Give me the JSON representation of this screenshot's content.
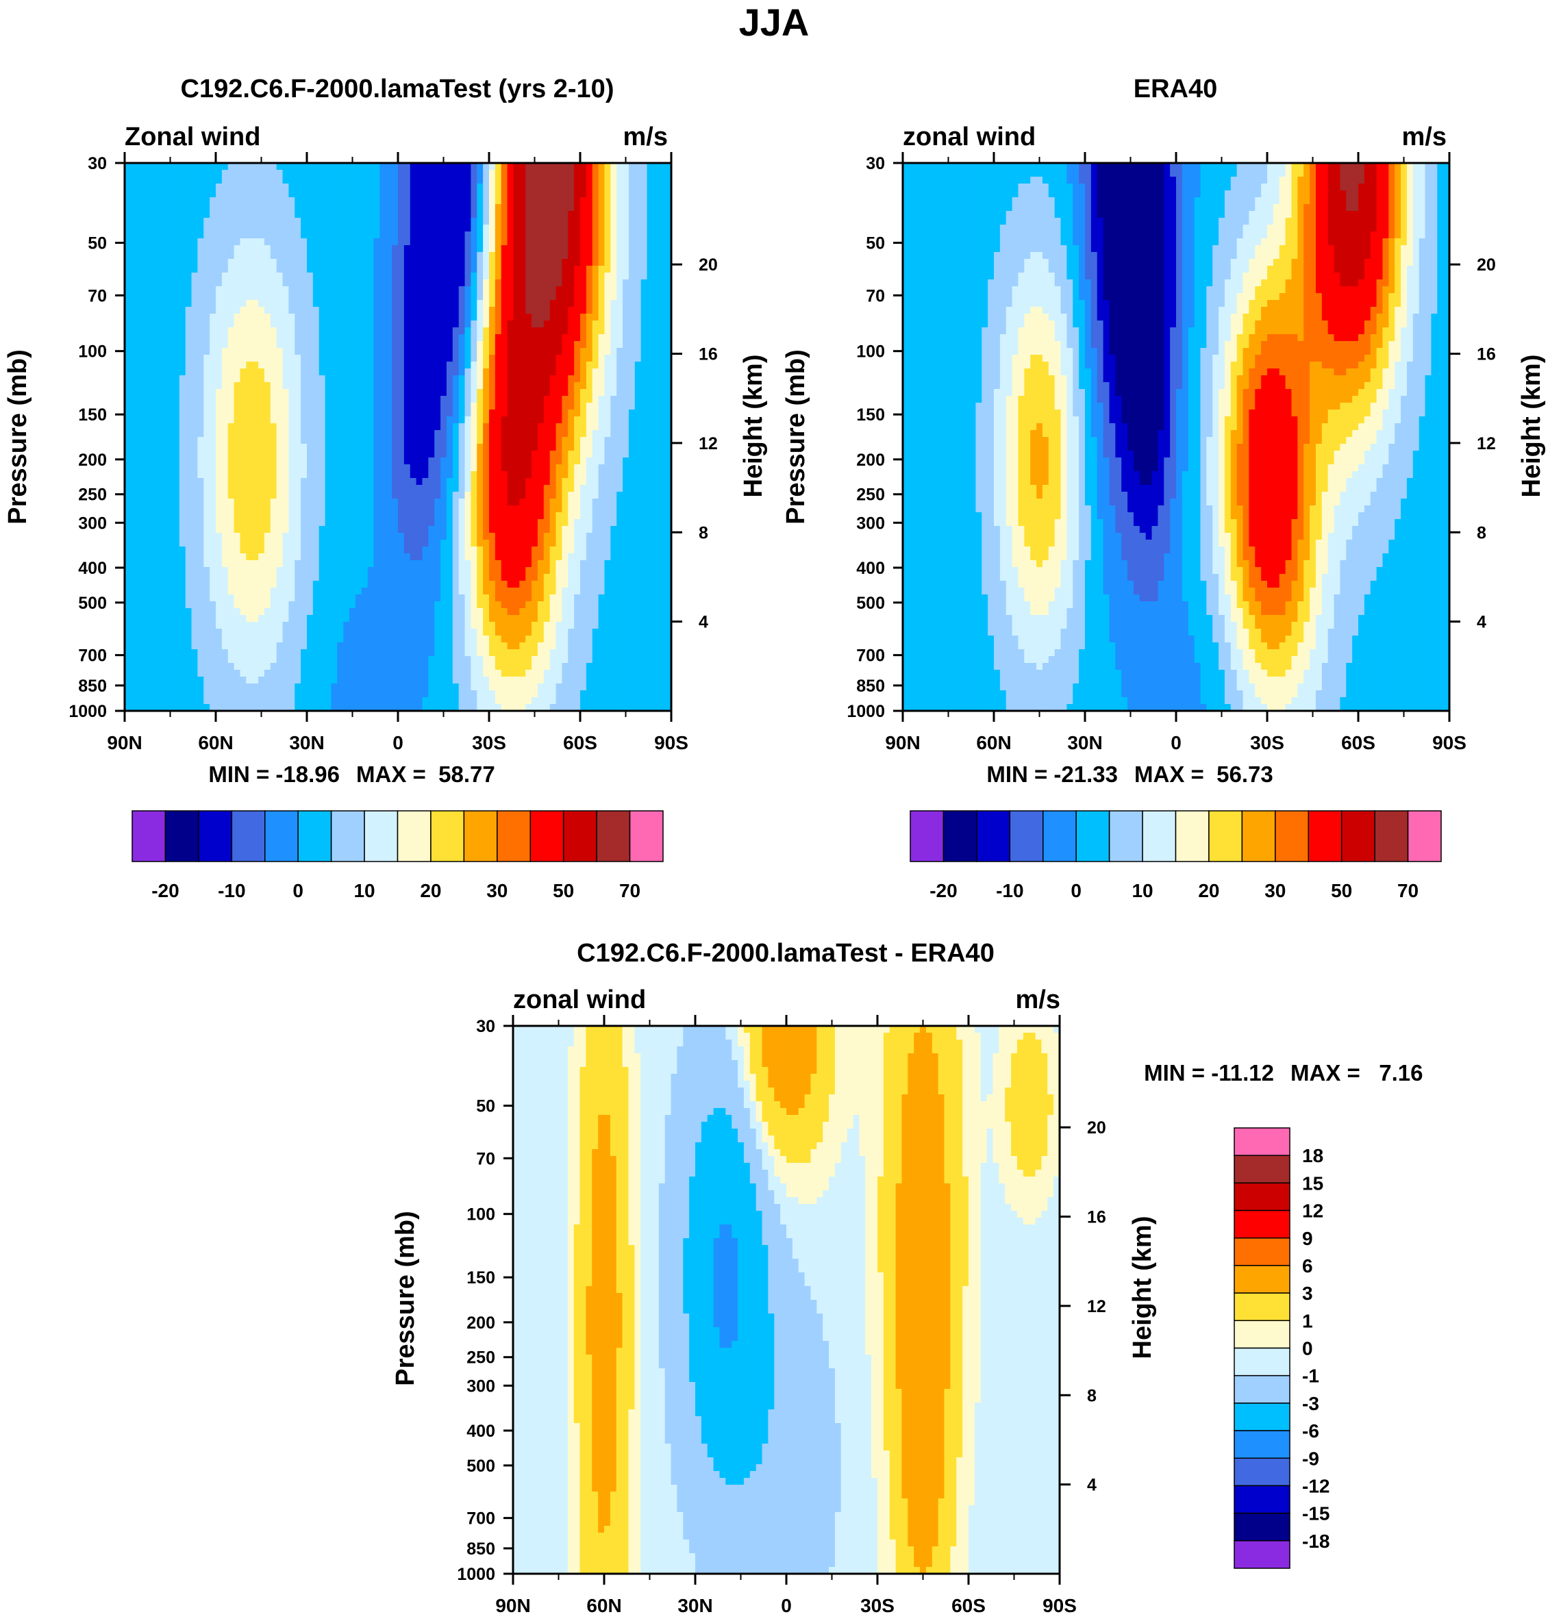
{
  "figure_title": "JJA",
  "colors": {
    "model_levels": [
      -25,
      -20,
      -15,
      -10,
      -5,
      0,
      5,
      10,
      15,
      20,
      25,
      30,
      40,
      50,
      60,
      70
    ],
    "model_palette": [
      "#8a2be2",
      "#00008b",
      "#0000cd",
      "#4169e1",
      "#1e90ff",
      "#00bfff",
      "#a0d0ff",
      "#d2f2ff",
      "#fffacd",
      "#ffe135",
      "#ffa500",
      "#ff7000",
      "#ff0000",
      "#cd0000",
      "#a52a2a",
      "#ff69b4"
    ],
    "diff_levels": [
      -18,
      -15,
      -12,
      -9,
      -6,
      -3,
      -1,
      0,
      1,
      3,
      6,
      9,
      12,
      15,
      18
    ],
    "diff_palette": [
      "#8a2be2",
      "#00008b",
      "#0000cd",
      "#4169e1",
      "#1e90ff",
      "#00bfff",
      "#a0d0ff",
      "#d2f2ff",
      "#fffacd",
      "#ffe135",
      "#ffa500",
      "#ff7000",
      "#ff0000",
      "#cd0000",
      "#a52a2a",
      "#ff69b4"
    ]
  },
  "chart_data": [
    {
      "type": "contour",
      "id": "model",
      "title": "C192.C6.F-2000.lamaTest (yrs 2-10)",
      "left_label": "Zonal wind",
      "right_label": "m/s",
      "ylabel": "Pressure (mb)",
      "y2label": "Height (km)",
      "x_ticks": [
        "90N",
        "60N",
        "30N",
        "0",
        "30S",
        "60S",
        "90S"
      ],
      "x_tick_values": [
        90,
        60,
        30,
        0,
        -30,
        -60,
        -90
      ],
      "y_ticks": [
        30,
        50,
        70,
        100,
        150,
        200,
        250,
        300,
        400,
        500,
        700,
        850,
        1000
      ],
      "height_ticks": [
        20,
        16,
        12,
        8,
        4
      ],
      "min_label": "MIN = -18.96",
      "max_label": "MAX =  58.77",
      "min": -18.96,
      "max": 58.77,
      "colorbar_labels": [
        "-20",
        "-10",
        "0",
        "10",
        "20",
        "30",
        "50",
        "70"
      ],
      "features": [
        {
          "lat": -50,
          "p": 30,
          "amp": 62,
          "slat": 13,
          "sz": 1.2
        },
        {
          "lat": -35,
          "p": 200,
          "amp": 32,
          "slat": 11,
          "sz": 0.9
        },
        {
          "lat": -40,
          "p": 500,
          "amp": 10,
          "slat": 12,
          "sz": 0.8
        },
        {
          "lat": -18,
          "p": 30,
          "amp": -28,
          "slat": 10,
          "sz": 1.4
        },
        {
          "lat": -5,
          "p": 150,
          "amp": -10,
          "slat": 7,
          "sz": 0.8
        },
        {
          "lat": 48,
          "p": 200,
          "amp": 22,
          "slat": 12,
          "sz": 1.0
        },
        {
          "lat": 10,
          "p": 850,
          "amp": -4,
          "slat": 12,
          "sz": 0.5
        }
      ],
      "background": -3
    },
    {
      "type": "contour",
      "id": "era40",
      "title": "ERA40",
      "left_label": "zonal wind",
      "right_label": "m/s",
      "ylabel": "Pressure (mb)",
      "y2label": "Height (km)",
      "x_ticks": [
        "90N",
        "60N",
        "30N",
        "0",
        "30S",
        "60S",
        "90S"
      ],
      "x_tick_values": [
        90,
        60,
        30,
        0,
        -30,
        -60,
        -90
      ],
      "y_ticks": [
        30,
        50,
        70,
        100,
        150,
        200,
        250,
        300,
        400,
        500,
        700,
        850,
        1000
      ],
      "height_ticks": [
        20,
        16,
        12,
        8,
        4
      ],
      "min_label": "MIN = -21.33",
      "max_label": "MAX =  56.73",
      "min": -21.33,
      "max": 56.73,
      "colorbar_labels": [
        "-20",
        "-10",
        "0",
        "10",
        "20",
        "30",
        "50",
        "70"
      ],
      "features": [
        {
          "lat": -58,
          "p": 30,
          "amp": 55,
          "slat": 12,
          "sz": 1.1
        },
        {
          "lat": -30,
          "p": 200,
          "amp": 36,
          "slat": 11,
          "sz": 0.9
        },
        {
          "lat": -35,
          "p": 500,
          "amp": 10,
          "slat": 12,
          "sz": 0.8
        },
        {
          "lat": 15,
          "p": 30,
          "amp": -30,
          "slat": 10,
          "sz": 1.4
        },
        {
          "lat": 8,
          "p": 150,
          "amp": -10,
          "slat": 6,
          "sz": 0.8
        },
        {
          "lat": 45,
          "p": 200,
          "amp": 24,
          "slat": 10,
          "sz": 0.9
        },
        {
          "lat": -10,
          "p": 850,
          "amp": -4,
          "slat": 12,
          "sz": 0.5
        }
      ],
      "background": -3
    },
    {
      "type": "contour",
      "id": "diff",
      "title": "C192.C6.F-2000.lamaTest - ERA40",
      "left_label": "zonal wind",
      "right_label": "m/s",
      "ylabel": "Pressure (mb)",
      "y2label": "Height (km)",
      "x_ticks": [
        "90N",
        "60N",
        "30N",
        "0",
        "30S",
        "60S",
        "90S"
      ],
      "x_tick_values": [
        90,
        60,
        30,
        0,
        -30,
        -60,
        -90
      ],
      "y_ticks": [
        30,
        50,
        70,
        100,
        150,
        200,
        250,
        300,
        400,
        500,
        700,
        850,
        1000
      ],
      "height_ticks": [
        20,
        16,
        12,
        8,
        4
      ],
      "min_label": "MIN = -11.12",
      "max_label": "MAX =   7.16",
      "min": -11.12,
      "max": 7.16,
      "colorbar_labels": [
        "18",
        "15",
        "12",
        "9",
        "6",
        "3",
        "1",
        "0",
        "-1",
        "-3",
        "-6",
        "-9",
        "-12",
        "-15",
        "-18"
      ],
      "features": [
        {
          "lat": 60,
          "p": 200,
          "amp": 5,
          "slat": 6,
          "sz": 1.6
        },
        {
          "lat": 20,
          "p": 150,
          "amp": -6,
          "slat": 10,
          "sz": 0.9
        },
        {
          "lat": 0,
          "p": 30,
          "amp": 6,
          "slat": 10,
          "sz": 0.6
        },
        {
          "lat": -45,
          "p": 100,
          "amp": 5,
          "slat": 9,
          "sz": 1.4
        },
        {
          "lat": -45,
          "p": 500,
          "amp": 3,
          "slat": 6,
          "sz": 0.9
        },
        {
          "lat": -80,
          "p": 50,
          "amp": 3,
          "slat": 6,
          "sz": 0.4
        },
        {
          "lat": 0,
          "p": 500,
          "amp": -1.5,
          "slat": 12,
          "sz": 0.8
        }
      ],
      "background": -0.5
    }
  ]
}
